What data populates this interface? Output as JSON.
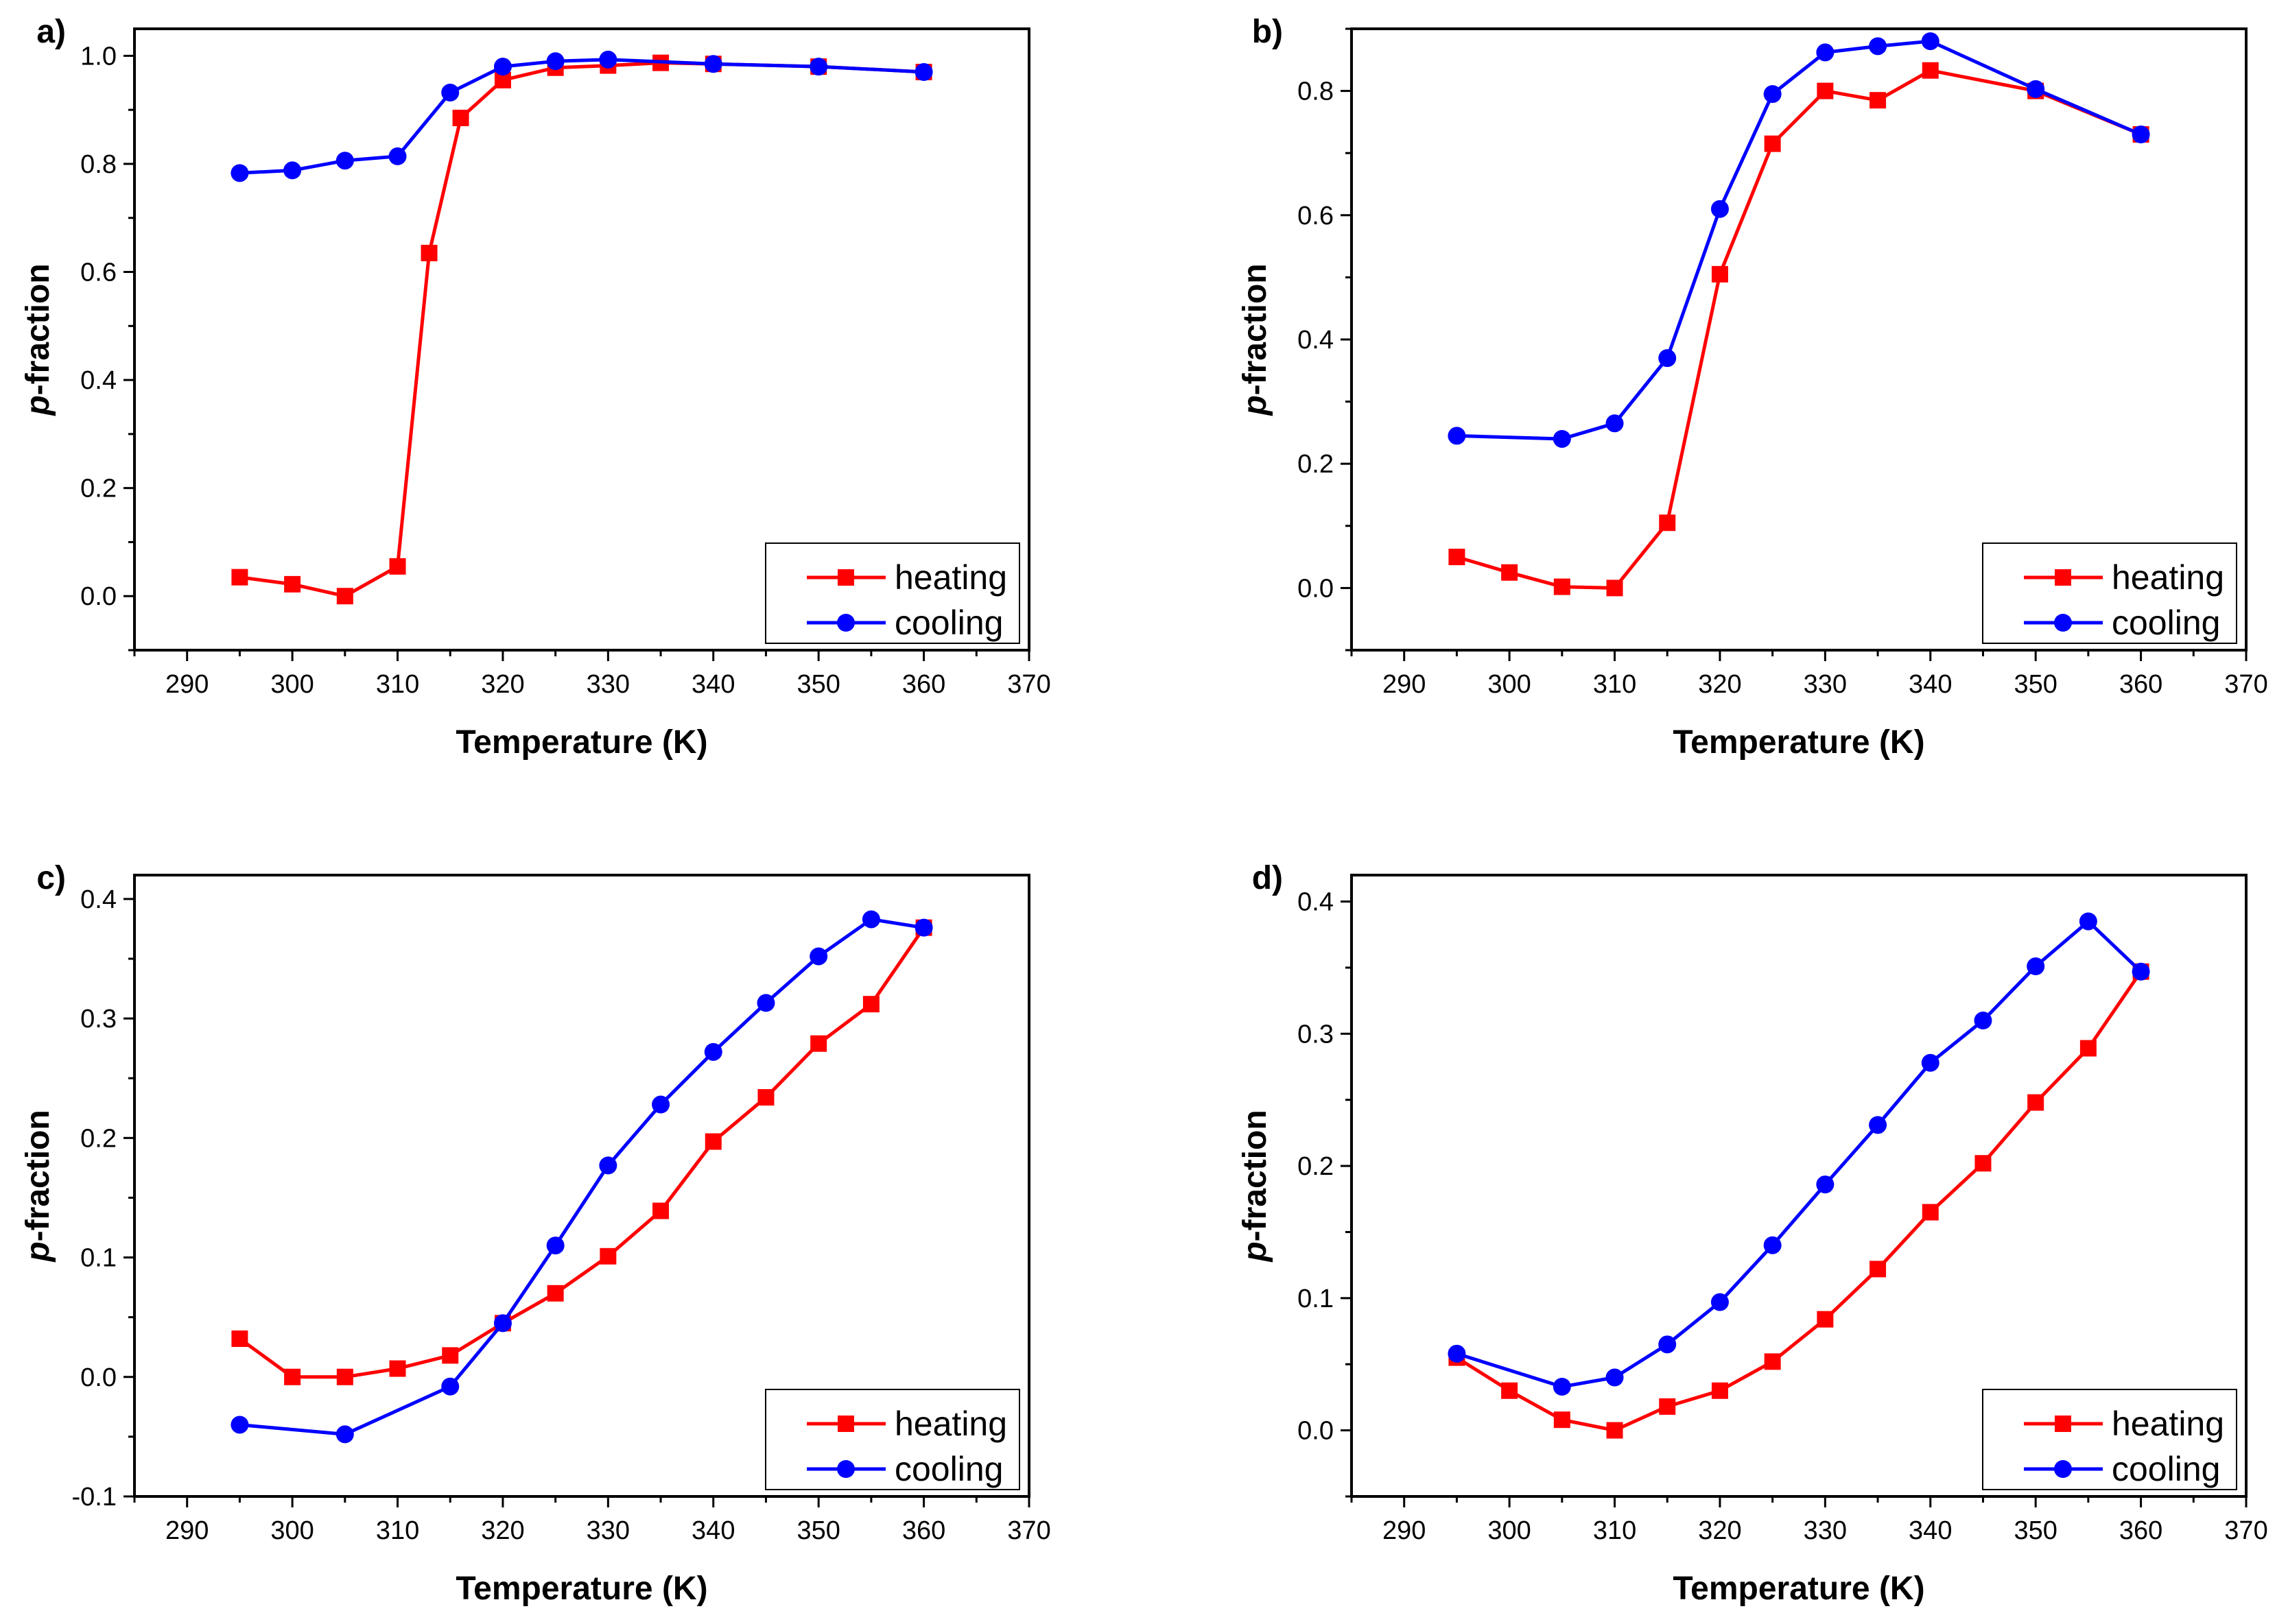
{
  "chart_data": [
    {
      "type": "line",
      "panel_label": "a)",
      "xlabel": "Temperature (K)",
      "ylabel": "p-fraction",
      "ylabel_italic": "p",
      "ylabel_rest": "-fraction",
      "xlim": [
        285,
        370
      ],
      "ylim": [
        -0.1,
        1.05
      ],
      "xticks": [
        290,
        300,
        310,
        320,
        330,
        340,
        350,
        360,
        370
      ],
      "xtick_labels": [
        "290",
        "300",
        "310",
        "320",
        "330",
        "340",
        "350",
        "360",
        "370"
      ],
      "yticks": [
        0.0,
        0.2,
        0.4,
        0.6,
        0.8,
        1.0
      ],
      "ytick_labels": [
        "0.0",
        "0.2",
        "0.4",
        "0.6",
        "0.8",
        "1.0"
      ],
      "legend_position": "bottom-right",
      "series": [
        {
          "name": "heating",
          "color": "#ff0000",
          "marker": "square",
          "x": [
            295,
            300,
            305,
            310,
            313,
            316,
            320,
            325,
            330,
            335,
            340,
            350,
            360
          ],
          "y": [
            0.035,
            0.022,
            0.0,
            0.055,
            0.635,
            0.885,
            0.955,
            0.978,
            0.982,
            0.987,
            0.985,
            0.98,
            0.97
          ]
        },
        {
          "name": "cooling",
          "color": "#0000ff",
          "marker": "circle",
          "x": [
            295,
            300,
            305,
            310,
            315,
            320,
            325,
            330,
            340,
            350,
            360
          ],
          "y": [
            0.783,
            0.788,
            0.806,
            0.814,
            0.932,
            0.98,
            0.99,
            0.993,
            0.985,
            0.98,
            0.97
          ]
        }
      ]
    },
    {
      "type": "line",
      "panel_label": "b)",
      "xlabel": "Temperature (K)",
      "ylabel": "p-fraction",
      "ylabel_italic": "p",
      "ylabel_rest": "-fraction",
      "xlim": [
        285,
        370
      ],
      "ylim": [
        -0.1,
        0.9
      ],
      "xticks": [
        290,
        300,
        310,
        320,
        330,
        340,
        350,
        360,
        370
      ],
      "xtick_labels": [
        "290",
        "300",
        "310",
        "320",
        "330",
        "340",
        "350",
        "360",
        "370"
      ],
      "yticks": [
        0.0,
        0.2,
        0.4,
        0.6,
        0.8
      ],
      "ytick_labels": [
        "0.0",
        "0.2",
        "0.4",
        "0.6",
        "0.8"
      ],
      "legend_position": "bottom-right",
      "series": [
        {
          "name": "heating",
          "color": "#ff0000",
          "marker": "square",
          "x": [
            295,
            300,
            305,
            310,
            315,
            320,
            325,
            330,
            335,
            340,
            350,
            360
          ],
          "y": [
            0.05,
            0.025,
            0.002,
            0.0,
            0.105,
            0.505,
            0.715,
            0.8,
            0.785,
            0.833,
            0.8,
            0.73
          ]
        },
        {
          "name": "cooling",
          "color": "#0000ff",
          "marker": "circle",
          "x": [
            295,
            305,
            310,
            315,
            320,
            325,
            330,
            335,
            340,
            350,
            360
          ],
          "y": [
            0.245,
            0.24,
            0.265,
            0.37,
            0.61,
            0.795,
            0.862,
            0.872,
            0.88,
            0.803,
            0.73
          ]
        }
      ]
    },
    {
      "type": "line",
      "panel_label": "c)",
      "xlabel": "Temperature (K)",
      "ylabel": "p-fraction",
      "ylabel_italic": "p",
      "ylabel_rest": "-fraction",
      "xlim": [
        285,
        370
      ],
      "ylim": [
        -0.1,
        0.42
      ],
      "xticks": [
        290,
        300,
        310,
        320,
        330,
        340,
        350,
        360,
        370
      ],
      "xtick_labels": [
        "290",
        "300",
        "310",
        "320",
        "330",
        "340",
        "350",
        "360",
        "370"
      ],
      "yticks": [
        -0.1,
        0.0,
        0.1,
        0.2,
        0.3,
        0.4
      ],
      "ytick_labels": [
        "-0.1",
        "0.0",
        "0.1",
        "0.2",
        "0.3",
        "0.4"
      ],
      "legend_position": "bottom-right",
      "series": [
        {
          "name": "heating",
          "color": "#ff0000",
          "marker": "square",
          "x": [
            295,
            300,
            305,
            310,
            315,
            320,
            325,
            330,
            335,
            340,
            345,
            350,
            355,
            360
          ],
          "y": [
            0.032,
            0.0,
            0.0,
            0.007,
            0.018,
            0.045,
            0.07,
            0.101,
            0.139,
            0.197,
            0.234,
            0.279,
            0.312,
            0.376
          ]
        },
        {
          "name": "cooling",
          "color": "#0000ff",
          "marker": "circle",
          "x": [
            295,
            305,
            315,
            320,
            325,
            330,
            335,
            340,
            345,
            350,
            355,
            360
          ],
          "y": [
            -0.04,
            -0.048,
            -0.008,
            0.045,
            0.11,
            0.177,
            0.228,
            0.272,
            0.313,
            0.352,
            0.383,
            0.376
          ]
        }
      ]
    },
    {
      "type": "line",
      "panel_label": "d)",
      "xlabel": "Temperature (K)",
      "ylabel": "p-fraction",
      "ylabel_italic": "p",
      "ylabel_rest": "-fraction",
      "xlim": [
        285,
        370
      ],
      "ylim": [
        -0.05,
        0.42
      ],
      "xticks": [
        290,
        300,
        310,
        320,
        330,
        340,
        350,
        360,
        370
      ],
      "xtick_labels": [
        "290",
        "300",
        "310",
        "320",
        "330",
        "340",
        "350",
        "360",
        "370"
      ],
      "yticks": [
        0.0,
        0.1,
        0.2,
        0.3,
        0.4
      ],
      "ytick_labels": [
        "0.0",
        "0.1",
        "0.2",
        "0.3",
        "0.4"
      ],
      "legend_position": "bottom-right",
      "series": [
        {
          "name": "heating",
          "color": "#ff0000",
          "marker": "square",
          "x": [
            295,
            300,
            305,
            310,
            315,
            320,
            325,
            330,
            335,
            340,
            345,
            350,
            355,
            360
          ],
          "y": [
            0.055,
            0.03,
            0.008,
            0.0,
            0.018,
            0.03,
            0.052,
            0.084,
            0.122,
            0.165,
            0.202,
            0.248,
            0.289,
            0.347
          ]
        },
        {
          "name": "cooling",
          "color": "#0000ff",
          "marker": "circle",
          "x": [
            295,
            305,
            310,
            315,
            320,
            325,
            330,
            335,
            340,
            345,
            350,
            355,
            360
          ],
          "y": [
            0.058,
            0.033,
            0.04,
            0.065,
            0.097,
            0.14,
            0.186,
            0.231,
            0.278,
            0.31,
            0.351,
            0.385,
            0.347
          ]
        }
      ]
    }
  ]
}
